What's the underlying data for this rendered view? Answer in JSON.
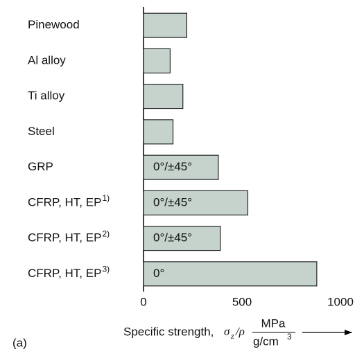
{
  "chart_data": {
    "type": "barh",
    "categories": [
      {
        "text": "Pinewood"
      },
      {
        "text": "Al alloy"
      },
      {
        "text": "Ti alloy"
      },
      {
        "text": "Steel"
      },
      {
        "text": "GRP"
      },
      {
        "text": "CFRP, HT, EP",
        "superscript": "1)"
      },
      {
        "text": "CFRP, HT, EP",
        "superscript": "2)"
      },
      {
        "text": "CFRP, HT, EP",
        "superscript": "3)"
      }
    ],
    "values": [
      220,
      135,
      200,
      150,
      380,
      530,
      390,
      880
    ],
    "bar_labels": [
      null,
      null,
      null,
      null,
      "0°/±45°",
      "0°/±45°",
      "0°/±45°",
      "0°"
    ],
    "color": "#c5d3cc",
    "xlim": [
      0,
      1000
    ],
    "xticks": [
      0,
      500,
      1000
    ],
    "xlabel": {
      "text": "Specific strength,",
      "symbol": "σ",
      "symbol_sub": "z",
      "symbol_rest": "/ρ",
      "numerator": "MPa",
      "denominator": "g/cm",
      "denominator_sup": "3"
    },
    "panel_label": "(a)"
  }
}
